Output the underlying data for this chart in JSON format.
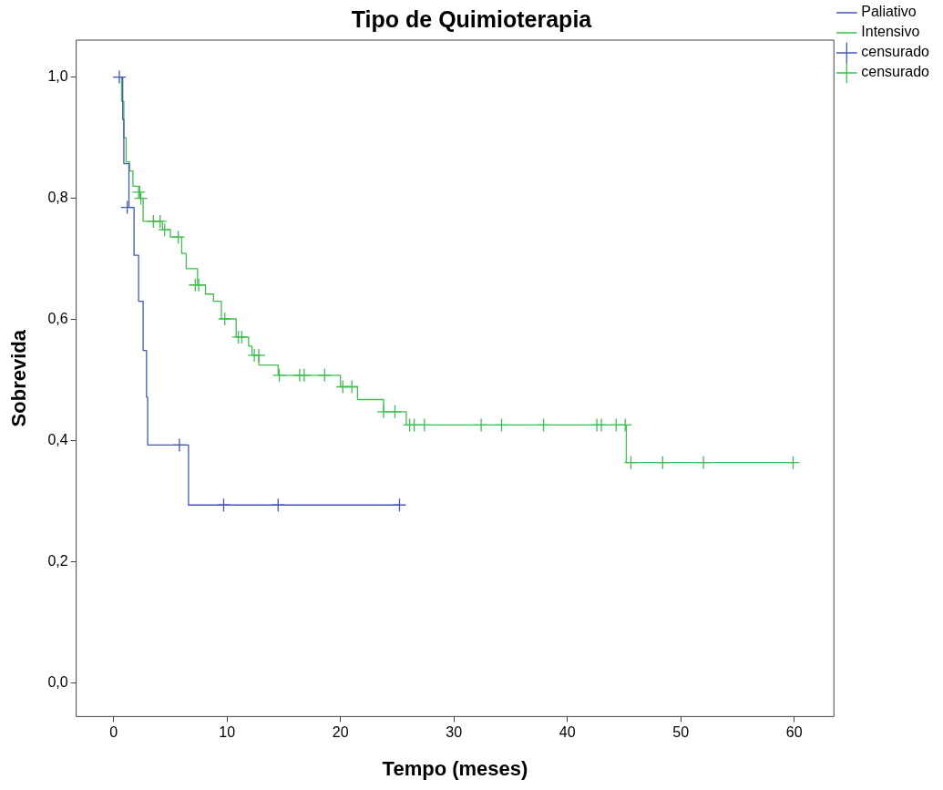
{
  "chart_data": {
    "type": "step",
    "title": "Tipo de Quimioterapia",
    "xlabel": "Tempo (meses)",
    "ylabel": "Sobrevida",
    "xlim": [
      -3.3,
      63.5
    ],
    "xticks": [
      0,
      10,
      20,
      30,
      40,
      50,
      60
    ],
    "ylim": [
      -0.055,
      1.061
    ],
    "yticks": [
      {
        "value": 0,
        "label": "0,0"
      },
      {
        "value": 0.2,
        "label": "0,2"
      },
      {
        "value": 0.4,
        "label": "0,4"
      },
      {
        "value": 0.6,
        "label": "0,6"
      },
      {
        "value": 0.8,
        "label": "0,8"
      },
      {
        "value": 1,
        "label": "1,0"
      }
    ],
    "grid": false,
    "legend": "right",
    "line_style": "solid",
    "series": [
      {
        "name": "Paliativo",
        "type": "step",
        "marker": "none",
        "color": "#4257b8",
        "x": [
          0.4,
          0.8,
          0.9,
          1.35,
          1.8,
          2.2,
          2.6,
          2.9,
          3.0,
          6.6,
          25.2
        ],
        "values": [
          1.0,
          0.93,
          0.857,
          0.785,
          0.706,
          0.63,
          0.549,
          0.472,
          0.393,
          0.294,
          0.294
        ]
      },
      {
        "name": "Intensivo",
        "type": "step",
        "marker": "none",
        "color": "#3fbf4f",
        "x": [
          0.5,
          0.7,
          0.9,
          1.1,
          1.4,
          1.7,
          2.3,
          2.6,
          4.3,
          5.0,
          6.0,
          6.4,
          7.4,
          8.1,
          8.8,
          9.5,
          10.8,
          11.9,
          12.2,
          12.8,
          14.5,
          20.0,
          21.5,
          23.8,
          25.8,
          45.2,
          60
        ],
        "values": [
          1.0,
          0.96,
          0.9,
          0.86,
          0.845,
          0.82,
          0.8,
          0.762,
          0.748,
          0.736,
          0.709,
          0.684,
          0.657,
          0.642,
          0.63,
          0.601,
          0.571,
          0.556,
          0.541,
          0.525,
          0.508,
          0.489,
          0.468,
          0.448,
          0.426,
          0.364,
          0.364
        ]
      },
      {
        "name": "censurado",
        "type": "scatter",
        "marker": "cross",
        "color": "#4257b8",
        "x": [
          0.5,
          1.2,
          5.8,
          9.7,
          14.5,
          25.2
        ],
        "values": [
          1.0,
          0.785,
          0.393,
          0.294,
          0.294,
          0.294
        ]
      },
      {
        "name": "censurado",
        "type": "scatter",
        "marker": "cross",
        "color": "#3fbf4f",
        "x": [
          2.2,
          2.4,
          3.5,
          4.1,
          4.5,
          5.7,
          7.2,
          7.5,
          9.8,
          11.0,
          11.3,
          12.4,
          12.8,
          14.6,
          16.4,
          16.8,
          18.6,
          20.2,
          21.0,
          23.8,
          24.8,
          26.1,
          26.5,
          27.4,
          32.4,
          34.2,
          37.9,
          42.6,
          43.0,
          44.3,
          45.1,
          45.6,
          48.4,
          52.0,
          59.9
        ],
        "values": [
          0.81,
          0.8,
          0.762,
          0.762,
          0.748,
          0.736,
          0.657,
          0.657,
          0.601,
          0.571,
          0.571,
          0.541,
          0.541,
          0.508,
          0.508,
          0.508,
          0.508,
          0.489,
          0.489,
          0.448,
          0.448,
          0.426,
          0.426,
          0.426,
          0.426,
          0.426,
          0.426,
          0.426,
          0.426,
          0.426,
          0.426,
          0.364,
          0.364,
          0.364,
          0.364
        ]
      }
    ]
  }
}
